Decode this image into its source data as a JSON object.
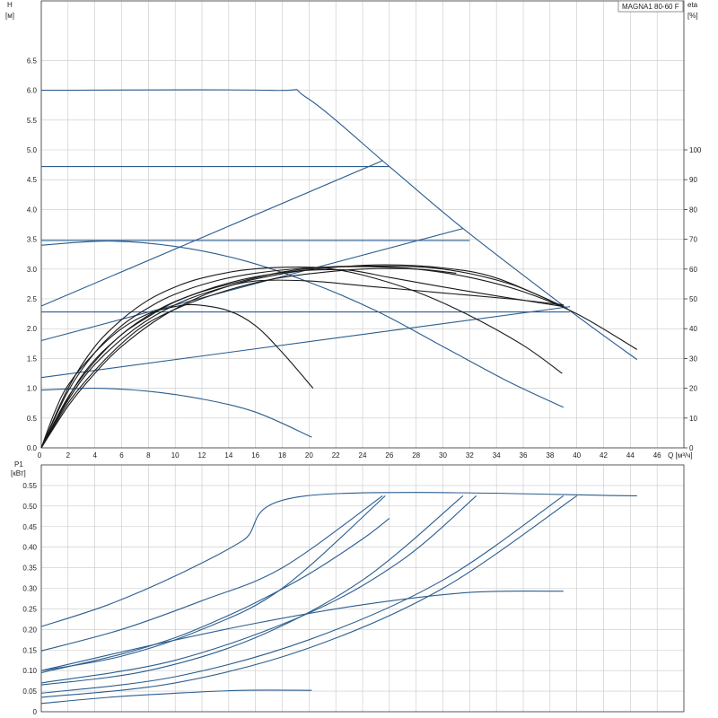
{
  "chart_data": {
    "title": "MAGNA1 80-60 F",
    "x": {
      "label": "Q [м³/ч]",
      "range": [
        0,
        48
      ],
      "ticks": [
        0,
        2,
        4,
        6,
        8,
        10,
        12,
        14,
        16,
        18,
        20,
        22,
        24,
        26,
        28,
        30,
        32,
        34,
        36,
        38,
        40,
        42,
        44,
        46
      ]
    },
    "head_chart": {
      "type": "line",
      "ylabel": "H [м]",
      "y2label": "eta [%]",
      "ylim": [
        0,
        7.5
      ],
      "y_ticks": [
        0,
        0.5,
        1,
        1.5,
        2,
        2.5,
        3,
        3.5,
        4,
        4.5,
        5,
        5.5,
        6,
        6.5
      ],
      "y_tick_labels": [
        "0.0",
        "0.5",
        "1.0",
        "1.5",
        "2.0",
        "2.5",
        "3.0",
        "3.5",
        "4.0",
        "4.5",
        "5.0",
        "5.5",
        "6.0",
        "6.5"
      ],
      "y2_ticks": [
        0,
        10,
        20,
        30,
        40,
        50,
        60,
        70,
        80,
        90,
        100
      ],
      "series": [
        {
          "color": "#2b5d8f",
          "points": [
            [
              0,
              6.0
            ],
            [
              17,
              6.0
            ],
            [
              19.8,
              5.88
            ],
            [
              26,
              4.72
            ],
            [
              31.5,
              3.68
            ],
            [
              39.5,
              2.3
            ],
            [
              44.5,
              1.48
            ]
          ]
        },
        {
          "color": "#2b5d8f",
          "points": [
            [
              0,
              4.72
            ],
            [
              26,
              4.72
            ]
          ]
        },
        {
          "color": "#2b5d8f",
          "points": [
            [
              0,
              3.48
            ],
            [
              32,
              3.48
            ]
          ]
        },
        {
          "color": "#2b5d8f",
          "points": [
            [
              0,
              2.28
            ],
            [
              39.5,
              2.28
            ]
          ]
        },
        {
          "color": "#2b5d8f",
          "points": [
            [
              0,
              2.38
            ],
            [
              25.5,
              4.82
            ]
          ]
        },
        {
          "color": "#2b5d8f",
          "points": [
            [
              0,
              1.8
            ],
            [
              31.5,
              3.68
            ]
          ]
        },
        {
          "color": "#2b5d8f",
          "points": [
            [
              0,
              1.18
            ],
            [
              39.5,
              2.37
            ]
          ]
        },
        {
          "color": "#2b5d8f",
          "points": [
            [
              0,
              3.4
            ],
            [
              5,
              3.47
            ],
            [
              10,
              3.38
            ],
            [
              15,
              3.15
            ],
            [
              20,
              2.78
            ],
            [
              25,
              2.3
            ],
            [
              30,
              1.7
            ],
            [
              35,
              1.1
            ],
            [
              39,
              0.68
            ]
          ]
        },
        {
          "color": "#2b5d8f",
          "points": [
            [
              0,
              0.97
            ],
            [
              4,
              1.0
            ],
            [
              8,
              0.95
            ],
            [
              12,
              0.82
            ],
            [
              16,
              0.6
            ],
            [
              20.2,
              0.18
            ]
          ]
        },
        {
          "color": "#1a1a1a",
          "points": [
            [
              0,
              0
            ],
            [
              1,
              0.6
            ],
            [
              2,
              1.05
            ],
            [
              4,
              1.6
            ],
            [
              6,
              2.0
            ],
            [
              8,
              2.25
            ],
            [
              10,
              2.37
            ],
            [
              11.5,
              2.4
            ],
            [
              14,
              2.3
            ],
            [
              16,
              2.05
            ],
            [
              18,
              1.6
            ],
            [
              20.3,
              1.0
            ]
          ]
        },
        {
          "color": "#1a1a1a",
          "points": [
            [
              0,
              0
            ],
            [
              2,
              1.0
            ],
            [
              4,
              1.7
            ],
            [
              6,
              2.15
            ],
            [
              8,
              2.48
            ],
            [
              10,
              2.7
            ],
            [
              12,
              2.85
            ],
            [
              15,
              2.98
            ],
            [
              18,
              3.03
            ],
            [
              21,
              3.02
            ],
            [
              24,
              2.9
            ],
            [
              28,
              2.62
            ],
            [
              32,
              2.22
            ],
            [
              36,
              1.72
            ],
            [
              38.9,
              1.25
            ]
          ]
        },
        {
          "color": "#1a1a1a",
          "points": [
            [
              0,
              0
            ],
            [
              2,
              0.95
            ],
            [
              4,
              1.6
            ],
            [
              6,
              2.05
            ],
            [
              8,
              2.35
            ],
            [
              10,
              2.58
            ],
            [
              13,
              2.8
            ],
            [
              16,
              2.93
            ],
            [
              20,
              3.02
            ],
            [
              24,
              3.04
            ],
            [
              28,
              3.0
            ],
            [
              32,
              2.86
            ],
            [
              36,
              2.62
            ],
            [
              40,
              2.25
            ],
            [
              44.5,
              1.65
            ]
          ]
        },
        {
          "color": "#1a1a1a",
          "points": [
            [
              0,
              0
            ],
            [
              2,
              0.85
            ],
            [
              4,
              1.45
            ],
            [
              6,
              1.9
            ],
            [
              8,
              2.2
            ],
            [
              10,
              2.45
            ],
            [
              13,
              2.7
            ],
            [
              16,
              2.87
            ],
            [
              20,
              2.99
            ],
            [
              25,
              3.07
            ],
            [
              30,
              3.02
            ],
            [
              34,
              2.85
            ],
            [
              39,
              2.37
            ]
          ]
        },
        {
          "color": "#1a1a1a",
          "points": [
            [
              0,
              0
            ],
            [
              2,
              0.75
            ],
            [
              4,
              1.3
            ],
            [
              6,
              1.75
            ],
            [
              8,
              2.1
            ],
            [
              11,
              2.42
            ],
            [
              14,
              2.65
            ],
            [
              17,
              2.82
            ],
            [
              20,
              2.92
            ],
            [
              24,
              3.0
            ],
            [
              28,
              3.0
            ],
            [
              31,
              2.93
            ]
          ]
        },
        {
          "color": "#1a1a1a",
          "points": [
            [
              0,
              0
            ],
            [
              2,
              0.7
            ],
            [
              4,
              1.25
            ],
            [
              6,
              1.7
            ],
            [
              9,
              2.2
            ],
            [
              12,
              2.55
            ],
            [
              15,
              2.78
            ],
            [
              18,
              2.92
            ],
            [
              20,
              2.98
            ],
            [
              23,
              2.98
            ],
            [
              26,
              2.86
            ],
            [
              30,
              2.7
            ],
            [
              34,
              2.55
            ],
            [
              39,
              2.37
            ]
          ]
        },
        {
          "color": "#1a1a1a",
          "points": [
            [
              0,
              0
            ],
            [
              2,
              0.8
            ],
            [
              4,
              1.4
            ],
            [
              7,
              2.0
            ],
            [
              10,
              2.4
            ],
            [
              13,
              2.65
            ],
            [
              16,
              2.8
            ],
            [
              20,
              2.8
            ],
            [
              25,
              2.7
            ],
            [
              30,
              2.6
            ],
            [
              35,
              2.5
            ],
            [
              39,
              2.4
            ]
          ]
        },
        {
          "color": "#1a1a1a",
          "points": [
            [
              0,
              0
            ],
            [
              3,
              1.2
            ],
            [
              6,
              1.9
            ],
            [
              9,
              2.35
            ],
            [
              12,
              2.62
            ],
            [
              15,
              2.8
            ],
            [
              18,
              2.95
            ],
            [
              21,
              3.03
            ],
            [
              25,
              3.05
            ],
            [
              30,
              3.0
            ],
            [
              35,
              2.75
            ],
            [
              39,
              2.37
            ]
          ]
        }
      ]
    },
    "power_chart": {
      "type": "line",
      "ylabel": "P1 [кВт]",
      "ylim": [
        0,
        0.6
      ],
      "y_ticks": [
        0,
        0.05,
        0.1,
        0.15,
        0.2,
        0.25,
        0.3,
        0.35,
        0.4,
        0.45,
        0.5,
        0.55
      ],
      "y_tick_labels": [
        "0",
        "0.05",
        "0.10",
        "0.15",
        "0.20",
        "0.25",
        "0.30",
        "0.35",
        "0.40",
        "0.45",
        "0.50",
        "0.55"
      ],
      "series": [
        {
          "color": "#2b5d8f",
          "points": [
            [
              0,
              0.207
            ],
            [
              5,
              0.26
            ],
            [
              10,
              0.33
            ],
            [
              15,
              0.415
            ],
            [
              19.8,
              0.525
            ],
            [
              44.5,
              0.525
            ]
          ]
        },
        {
          "color": "#2b5d8f",
          "points": [
            [
              0,
              0.148
            ],
            [
              6,
              0.2
            ],
            [
              12,
              0.27
            ],
            [
              18,
              0.35
            ],
            [
              25.5,
              0.525
            ]
          ]
        },
        {
          "color": "#2b5d8f",
          "points": [
            [
              0,
              0.1
            ],
            [
              6,
              0.135
            ],
            [
              12,
              0.2
            ],
            [
              18,
              0.3
            ],
            [
              25.7,
              0.525
            ]
          ]
        },
        {
          "color": "#2b5d8f",
          "points": [
            [
              0,
              0.065
            ],
            [
              8,
              0.1
            ],
            [
              16,
              0.18
            ],
            [
              24,
              0.32
            ],
            [
              31.5,
              0.525
            ]
          ]
        },
        {
          "color": "#2b5d8f",
          "points": [
            [
              0,
              0.07
            ],
            [
              10,
              0.125
            ],
            [
              20,
              0.24
            ],
            [
              27,
              0.37
            ],
            [
              32.5,
              0.525
            ]
          ]
        },
        {
          "color": "#2b5d8f",
          "points": [
            [
              0,
              0.045
            ],
            [
              10,
              0.085
            ],
            [
              20,
              0.175
            ],
            [
              30,
              0.32
            ],
            [
              39,
              0.525
            ]
          ]
        },
        {
          "color": "#2b5d8f",
          "points": [
            [
              0,
              0.035
            ],
            [
              10,
              0.07
            ],
            [
              20,
              0.155
            ],
            [
              30,
              0.3
            ],
            [
              40,
              0.525
            ]
          ]
        },
        {
          "color": "#2b5d8f",
          "points": [
            [
              0,
              0.1
            ],
            [
              8,
              0.16
            ],
            [
              16,
              0.215
            ],
            [
              24,
              0.26
            ],
            [
              32,
              0.29
            ],
            [
              39,
              0.293
            ]
          ]
        },
        {
          "color": "#2b5d8f",
          "points": [
            [
              0,
              0.095
            ],
            [
              6,
              0.14
            ],
            [
              10,
              0.18
            ],
            [
              13,
              0.22
            ],
            [
              16,
              0.265
            ],
            [
              20,
              0.335
            ],
            [
              24,
              0.42
            ],
            [
              26,
              0.47
            ]
          ]
        },
        {
          "color": "#2b5d8f",
          "points": [
            [
              0,
              0.02
            ],
            [
              5,
              0.035
            ],
            [
              10,
              0.045
            ],
            [
              15,
              0.052
            ],
            [
              20.2,
              0.052
            ]
          ]
        }
      ]
    }
  }
}
